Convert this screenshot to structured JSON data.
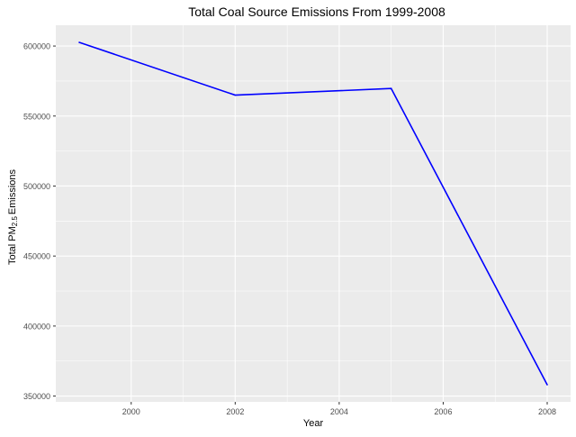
{
  "chart_data": {
    "type": "line",
    "title": "Total Coal Source Emissions From 1999-2008",
    "xlabel": "Year",
    "ylabel": {
      "prefix": "Total PM",
      "subscript": "2.5",
      "suffix": "Emissions"
    },
    "x": [
      1999,
      2002,
      2005,
      2008
    ],
    "series": [
      {
        "values": [
          602624,
          564941,
          569655,
          358084
        ]
      }
    ],
    "xlim": [
      1998.55,
      2008.45
    ],
    "ylim": [
      345857,
      614851
    ],
    "x_ticks": [
      2000,
      2002,
      2004,
      2006,
      2008
    ],
    "x_tick_labels": [
      "2000",
      "2002",
      "2004",
      "2006",
      "2008"
    ],
    "y_ticks": [
      350000,
      400000,
      450000,
      500000,
      550000,
      600000
    ],
    "y_tick_labels": [
      "350000",
      "400000",
      "450000",
      "500000",
      "550000",
      "600000"
    ],
    "grid": true,
    "line_color": "#0000ff",
    "panel_color": "#ebebeb",
    "grid_color": "#ffffff"
  }
}
